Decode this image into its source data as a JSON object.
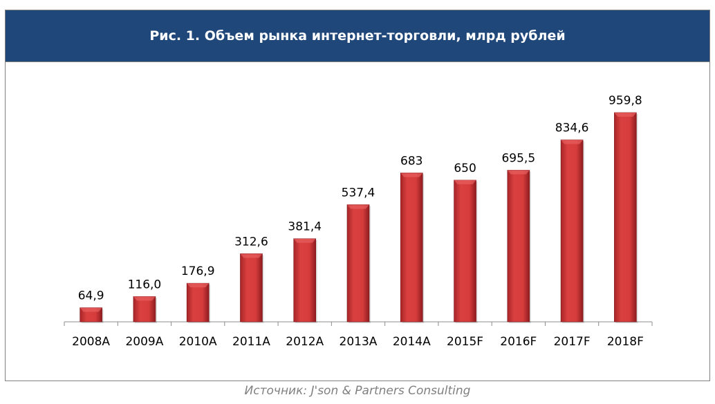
{
  "chart_data": {
    "type": "bar",
    "title": "Рис. 1. Объем рынка интернет-торговли, млрд рублей",
    "categories": [
      "2008A",
      "2009A",
      "2010A",
      "2011A",
      "2012A",
      "2013A",
      "2014A",
      "2015F",
      "2016F",
      "2017F",
      "2018F"
    ],
    "values": [
      64.9,
      116.0,
      176.9,
      312.6,
      381.4,
      537.4,
      683,
      650,
      695.5,
      834.6,
      959.8
    ],
    "data_labels": [
      "64,9",
      "116,0",
      "176,9",
      "312,6",
      "381,4",
      "537,4",
      "683",
      "650",
      "695,5",
      "834,6",
      "959,8"
    ],
    "xlabel": "",
    "ylabel": "",
    "ylim": [
      0,
      959.8
    ],
    "grid": false,
    "bar_color": "#d0373a"
  },
  "source": "Источник: J'son & Partners Consulting"
}
